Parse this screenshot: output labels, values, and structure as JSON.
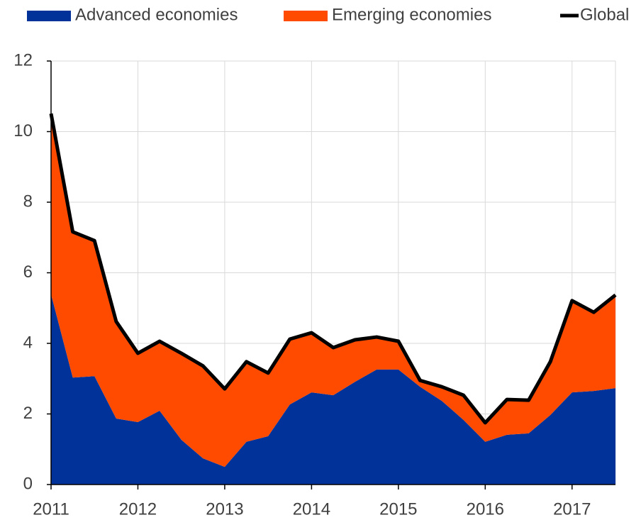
{
  "chart_data": {
    "type": "area",
    "stacked": true,
    "x": [
      2011,
      2011.25,
      2011.5,
      2011.75,
      2012,
      2012.25,
      2012.5,
      2012.75,
      2013,
      2013.25,
      2013.5,
      2013.75,
      2014,
      2014.25,
      2014.5,
      2014.75,
      2015,
      2015.25,
      2015.5,
      2015.75,
      2016,
      2016.25,
      2016.5,
      2016.75,
      2017,
      2017.25,
      2017.5
    ],
    "series": [
      {
        "name": "Advanced economies",
        "color": "#003299",
        "type": "area",
        "values": [
          5.39,
          3.03,
          3.07,
          1.87,
          1.77,
          2.09,
          1.27,
          0.74,
          0.5,
          1.21,
          1.37,
          2.27,
          2.61,
          2.53,
          2.91,
          3.26,
          3.26,
          2.77,
          2.37,
          1.83,
          1.21,
          1.41,
          1.45,
          1.97,
          2.61,
          2.65,
          2.73
        ]
      },
      {
        "name": "Emerging economies",
        "color": "#ff4b00",
        "type": "area",
        "values": [
          5.12,
          4.13,
          3.84,
          2.75,
          1.95,
          1.97,
          2.45,
          2.62,
          2.21,
          2.27,
          1.79,
          1.85,
          1.69,
          1.35,
          1.19,
          0.92,
          0.8,
          0.18,
          0.4,
          0.7,
          0.54,
          1.0,
          0.94,
          1.51,
          2.6,
          2.23,
          2.64
        ]
      },
      {
        "name": "Global",
        "color": "#000000",
        "type": "line",
        "values": [
          10.51,
          7.16,
          6.91,
          4.62,
          3.72,
          4.06,
          3.72,
          3.36,
          2.71,
          3.48,
          3.16,
          4.12,
          4.3,
          3.88,
          4.1,
          4.18,
          4.06,
          2.95,
          2.77,
          2.53,
          1.75,
          2.41,
          2.39,
          3.48,
          5.21,
          4.88,
          5.37
        ]
      }
    ],
    "xlim": [
      2011,
      2017.5
    ],
    "xticks": [
      2011,
      2012,
      2013,
      2014,
      2015,
      2016,
      2017
    ],
    "ylim": [
      0,
      12
    ],
    "yticks": [
      0,
      2,
      4,
      6,
      8,
      10,
      12
    ],
    "grid": true
  }
}
